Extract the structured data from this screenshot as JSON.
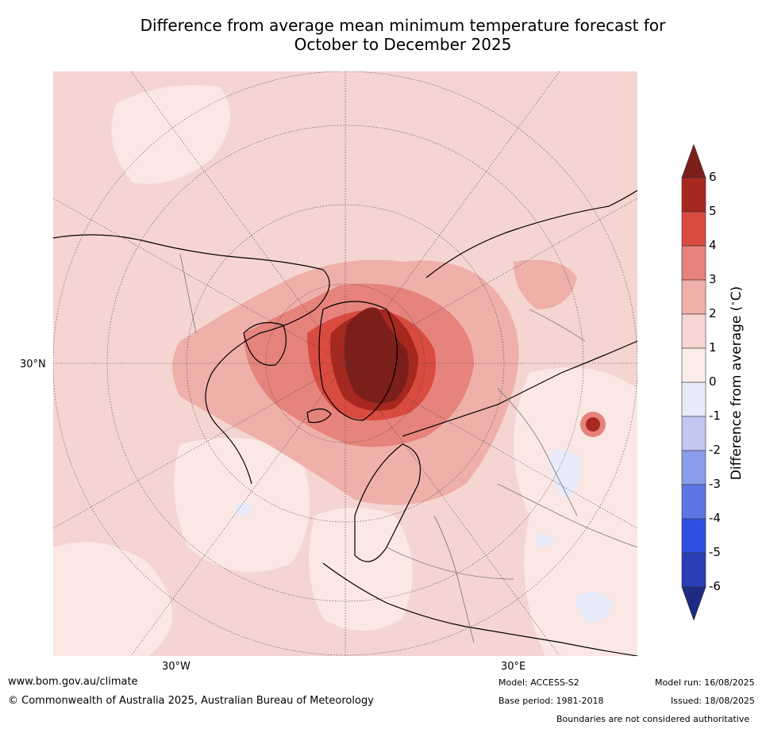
{
  "title": {
    "line1": "Difference from average mean minimum temperature forecast for",
    "line2": "October to December 2025"
  },
  "map": {
    "lat_label": "30°N",
    "lon_labels": [
      "30°W",
      "30°E"
    ],
    "colors": {
      "ocean_base": "#fbe8e5",
      "land_base": "#f5d5d1",
      "coast": "#000000",
      "border": "#808080",
      "grid": "#444444"
    }
  },
  "colorbar": {
    "title": "Difference from average ($^\\circ$C)",
    "ticks": [
      "6",
      "5",
      "4",
      "3",
      "2",
      "1",
      "0",
      "-1",
      "-2",
      "-3",
      "-4",
      "-5",
      "-6"
    ],
    "bins": [
      {
        "range": "6 to above",
        "color": "#7c1e1a"
      },
      {
        "range": "5 to 6",
        "color": "#a7281f"
      },
      {
        "range": "4 to 5",
        "color": "#d94b40"
      },
      {
        "range": "3 to 4",
        "color": "#e6837c"
      },
      {
        "range": "2 to 3",
        "color": "#efb0aa"
      },
      {
        "range": "1 to 2",
        "color": "#f6d6d2"
      },
      {
        "range": "0 to 1",
        "color": "#fcecea"
      },
      {
        "range": "-1 to 0",
        "color": "#e8ecfa"
      },
      {
        "range": "-2 to -1",
        "color": "#c0c8f2"
      },
      {
        "range": "-3 to -2",
        "color": "#8b9ceb"
      },
      {
        "range": "-4 to -3",
        "color": "#5d76e6"
      },
      {
        "range": "-5 to -4",
        "color": "#2f50e0"
      },
      {
        "range": "-6 to -5",
        "color": "#2a3eb6"
      },
      {
        "range": "below -6",
        "color": "#1f2b82"
      }
    ]
  },
  "footer": {
    "website": "www.bom.gov.au/climate",
    "copyright": "© Commonwealth of Australia 2025, Australian Bureau of Meteorology",
    "model": "Model: ACCESS-S2",
    "base_period": "Base period: 1981-2018",
    "model_run": "Model run: 16/08/2025",
    "issued": "Issued: 18/08/2025",
    "disclaimer": "Boundaries are not considered authoritative"
  }
}
